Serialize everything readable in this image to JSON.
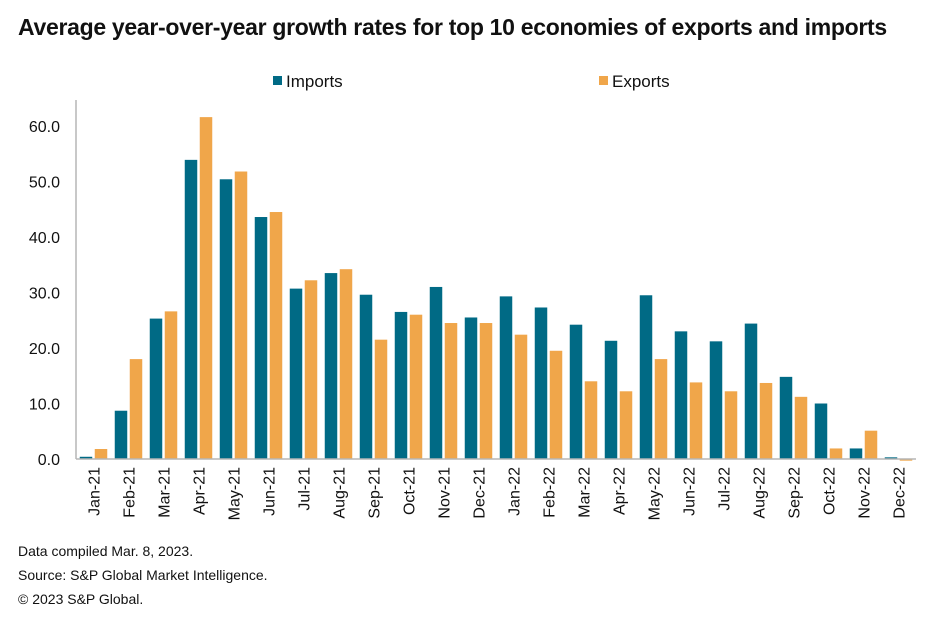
{
  "chart_data": {
    "type": "bar",
    "title": "Average year-over-year growth rates for top 10 economies of exports and imports",
    "xlabel": "",
    "ylabel": "",
    "ylim": [
      0,
      60
    ],
    "yticks": [
      "0.0",
      "10.0",
      "20.0",
      "30.0",
      "40.0",
      "50.0",
      "60.0"
    ],
    "ytick_values": [
      0,
      10,
      20,
      30,
      40,
      50,
      60
    ],
    "grid": false,
    "legend_position": "top-center",
    "categories": [
      "Jan-21",
      "Feb-21",
      "Mar-21",
      "Apr-21",
      "May-21",
      "Jun-21",
      "Jul-21",
      "Aug-21",
      "Sep-21",
      "Oct-21",
      "Nov-21",
      "Dec-21",
      "Jan-22",
      "Feb-22",
      "Mar-22",
      "Apr-22",
      "May-22",
      "Jun-22",
      "Jul-22",
      "Aug-22",
      "Sep-22",
      "Oct-22",
      "Nov-22",
      "Dec-22"
    ],
    "series": [
      {
        "name": "Imports",
        "color": "#006a85",
        "values": [
          0.4,
          8.7,
          25.3,
          53.9,
          50.4,
          43.6,
          30.7,
          33.5,
          29.6,
          26.5,
          31.0,
          25.5,
          29.3,
          27.3,
          24.2,
          21.3,
          29.5,
          23.0,
          21.2,
          24.4,
          14.8,
          10.0,
          1.9,
          0.3
        ]
      },
      {
        "name": "Exports",
        "color": "#f0a64a",
        "values": [
          1.8,
          18.0,
          26.6,
          61.6,
          51.8,
          44.5,
          32.2,
          34.2,
          21.5,
          26.0,
          24.5,
          24.5,
          22.4,
          19.5,
          14.0,
          12.2,
          18.0,
          13.8,
          12.2,
          13.7,
          11.2,
          1.9,
          5.1,
          -0.3
        ]
      }
    ]
  },
  "footnotes": [
    "Data compiled Mar. 8, 2023.",
    "Source: S&P Global Market Intelligence.",
    "© 2023 S&P Global."
  ]
}
